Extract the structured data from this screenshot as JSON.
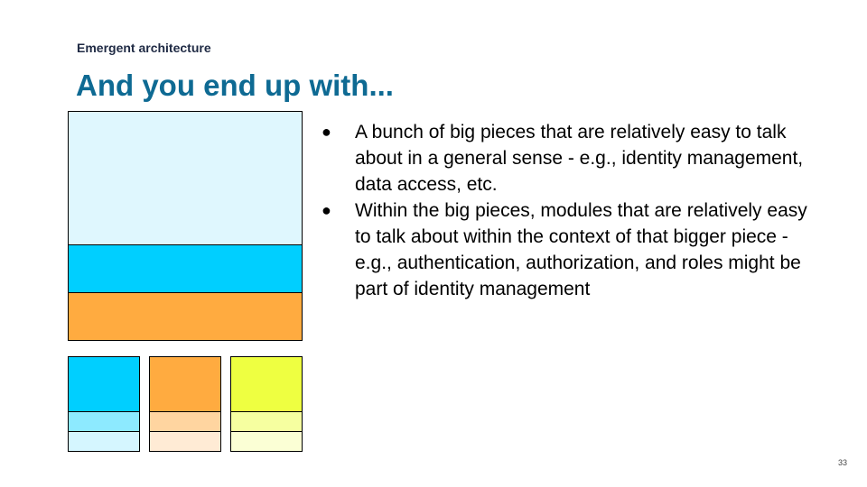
{
  "slide": {
    "section_label": "Emergent architecture",
    "title": "And you end up with...",
    "page_number": "33"
  },
  "bullets": {
    "marker": "●",
    "items": [
      "A bunch of big pieces that are relatively easy to talk about in a general sense - e.g., identity management, data access, etc.",
      "Within the big pieces, modules that are relatively easy to talk about within the context of that bigger piece - e.g., authentication, authorization, and roles might be part of identity management"
    ]
  },
  "colors": {
    "title": "#0e6a93",
    "subtitle": "#1f2a44",
    "light_cyan": "#dff7fe",
    "cyan": "#00cfff",
    "orange": "#ffab40",
    "yellow": "#eeff41",
    "mid_cyan": "#8deaff",
    "pale_cyan": "#d5f6ff",
    "mid_orange": "#ffd5a0",
    "pale_orange": "#ffebd5",
    "mid_yellow": "#f6ffa0",
    "pale_yellow": "#fbffd5"
  }
}
